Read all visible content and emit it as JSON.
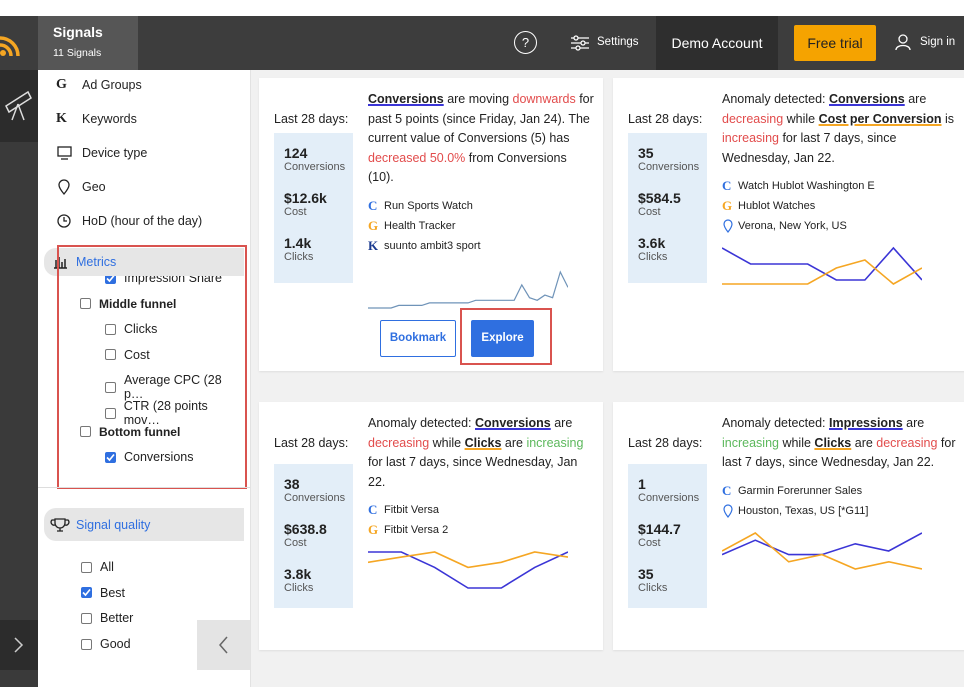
{
  "topbar": {
    "title": "Signals",
    "subtitle": "11 Signals",
    "help": "?",
    "settings": "Settings",
    "account": "Demo Account",
    "trial": "Free trial",
    "signin": "Sign in"
  },
  "sidebar": {
    "dimensions": [
      {
        "icon": "G",
        "label": "Ad Groups"
      },
      {
        "icon": "K",
        "label": "Keywords"
      },
      {
        "icon": "device",
        "label": "Device type"
      },
      {
        "icon": "geo",
        "label": "Geo"
      },
      {
        "icon": "clock",
        "label": "HoD (hour of the day)"
      }
    ],
    "metrics_label": "Metrics",
    "metrics": [
      {
        "label": "Impression Share",
        "checked": true,
        "level": 2
      },
      {
        "label": "Middle funnel",
        "checked": false,
        "level": 1
      },
      {
        "label": "Clicks",
        "checked": false,
        "level": 2
      },
      {
        "label": "Cost",
        "checked": false,
        "level": 2
      },
      {
        "label": "Average CPC (28 p…",
        "checked": false,
        "level": 2
      },
      {
        "label": "CTR (28 points mov…",
        "checked": false,
        "level": 2
      },
      {
        "label": "Bottom funnel",
        "checked": false,
        "level": 1
      },
      {
        "label": "Conversions",
        "checked": true,
        "level": 2
      }
    ],
    "quality_label": "Signal quality",
    "quality": [
      {
        "label": "All",
        "checked": false
      },
      {
        "label": "Best",
        "checked": true
      },
      {
        "label": "Better",
        "checked": false
      },
      {
        "label": "Good",
        "checked": false
      }
    ]
  },
  "cards": [
    {
      "period": "Last 28 days:",
      "stats": [
        {
          "value": "124",
          "label": "Conversions"
        },
        {
          "value": "$12.6k",
          "label": "Cost"
        },
        {
          "value": "1.4k",
          "label": "Clicks"
        }
      ],
      "text": [
        {
          "t": "Conversions",
          "s": "metric"
        },
        {
          "t": " are moving ",
          "s": "plain"
        },
        {
          "t": "downwards",
          "s": "bad"
        },
        {
          "t": " for past 5 points (since Friday, Jan 24). The current value of Conversions (5) has ",
          "s": "plain"
        },
        {
          "t": "decreased 50.0%",
          "s": "bad"
        },
        {
          "t": " from Conversions (10).",
          "s": "plain"
        }
      ],
      "entities": [
        {
          "icon": "C",
          "label": "Run Sports Watch"
        },
        {
          "icon": "G",
          "label": "Health Tracker"
        },
        {
          "icon": "K",
          "label": "suunto ambit3 sport"
        }
      ],
      "spark": [
        {
          "color": "#6f93b8",
          "values": [
            0,
            0,
            0,
            0,
            1,
            1,
            1,
            1,
            2,
            2,
            2,
            2,
            2,
            2,
            3,
            3,
            3,
            3,
            3,
            3,
            9,
            4,
            3,
            5,
            4,
            14,
            8
          ]
        }
      ],
      "buttons": [
        "Bookmark",
        "Explore"
      ]
    },
    {
      "period": "Last 28 days:",
      "stats": [
        {
          "value": "35",
          "label": "Conversions"
        },
        {
          "value": "$584.5",
          "label": "Cost"
        },
        {
          "value": "3.6k",
          "label": "Clicks"
        }
      ],
      "text": [
        {
          "t": "Anomaly detected: ",
          "s": "plain"
        },
        {
          "t": "Conversions",
          "s": "metric"
        },
        {
          "t": " are ",
          "s": "plain"
        },
        {
          "t": "decreasing",
          "s": "bad"
        },
        {
          "t": " while ",
          "s": "plain"
        },
        {
          "t": "Cost per Conversion",
          "s": "metric2"
        },
        {
          "t": " is ",
          "s": "plain"
        },
        {
          "t": "increasing",
          "s": "bad"
        },
        {
          "t": " for last 7 days, since Wednesday, Jan 22.",
          "s": "plain"
        }
      ],
      "entities": [
        {
          "icon": "C",
          "label": "Watch Hublot Washington E"
        },
        {
          "icon": "G",
          "label": "Hublot Watches"
        },
        {
          "icon": "pin",
          "label": "Verona, New York, US"
        }
      ],
      "spark": [
        {
          "color": "#3b35d6",
          "values": [
            9,
            5,
            5,
            5,
            1,
            1,
            9,
            1
          ]
        },
        {
          "color": "#f5a623",
          "values": [
            0,
            0,
            0,
            0,
            4,
            6,
            0,
            4
          ]
        }
      ]
    },
    {
      "period": "Last 28 days:",
      "stats": [
        {
          "value": "38",
          "label": "Conversions"
        },
        {
          "value": "$638.8",
          "label": "Cost"
        },
        {
          "value": "3.8k",
          "label": "Clicks"
        }
      ],
      "text": [
        {
          "t": "Anomaly detected: ",
          "s": "plain"
        },
        {
          "t": "Conversions",
          "s": "metric"
        },
        {
          "t": " are ",
          "s": "plain"
        },
        {
          "t": "decreasing",
          "s": "bad"
        },
        {
          "t": " while ",
          "s": "plain"
        },
        {
          "t": "Clicks",
          "s": "metric2"
        },
        {
          "t": " are ",
          "s": "plain"
        },
        {
          "t": "increasing",
          "s": "good"
        },
        {
          "t": " for last 7 days, since Wednesday, Jan 22.",
          "s": "plain"
        }
      ],
      "entities": [
        {
          "icon": "C",
          "label": "Fitbit Versa"
        },
        {
          "icon": "G",
          "label": "Fitbit Versa 2"
        }
      ],
      "spark": [
        {
          "color": "#3b35d6",
          "values": [
            8,
            8,
            5,
            1,
            1,
            5,
            8
          ]
        },
        {
          "color": "#f5a623",
          "values": [
            6,
            7,
            8,
            5,
            6,
            8,
            7
          ]
        }
      ]
    },
    {
      "period": "Last 28 days:",
      "stats": [
        {
          "value": "1",
          "label": "Conversions"
        },
        {
          "value": "$144.7",
          "label": "Cost"
        },
        {
          "value": "35",
          "label": "Clicks"
        }
      ],
      "text": [
        {
          "t": "Anomaly detected: ",
          "s": "plain"
        },
        {
          "t": "Impressions",
          "s": "metric"
        },
        {
          "t": " are ",
          "s": "plain"
        },
        {
          "t": "increasing",
          "s": "good"
        },
        {
          "t": " while ",
          "s": "plain"
        },
        {
          "t": "Clicks",
          "s": "metric2"
        },
        {
          "t": " are ",
          "s": "plain"
        },
        {
          "t": "decreasing",
          "s": "bad"
        },
        {
          "t": " for last 7 days, since Wednesday, Jan 22.",
          "s": "plain"
        }
      ],
      "entities": [
        {
          "icon": "C",
          "label": "Garmin Forerunner Sales"
        },
        {
          "icon": "pin",
          "label": "Houston, Texas, US [*G11]"
        }
      ],
      "spark": [
        {
          "color": "#3b35d6",
          "values": [
            4,
            8,
            4,
            4,
            7,
            5,
            10
          ]
        },
        {
          "color": "#f5a623",
          "values": [
            5,
            10,
            2,
            4,
            0,
            2,
            0
          ]
        }
      ]
    }
  ]
}
